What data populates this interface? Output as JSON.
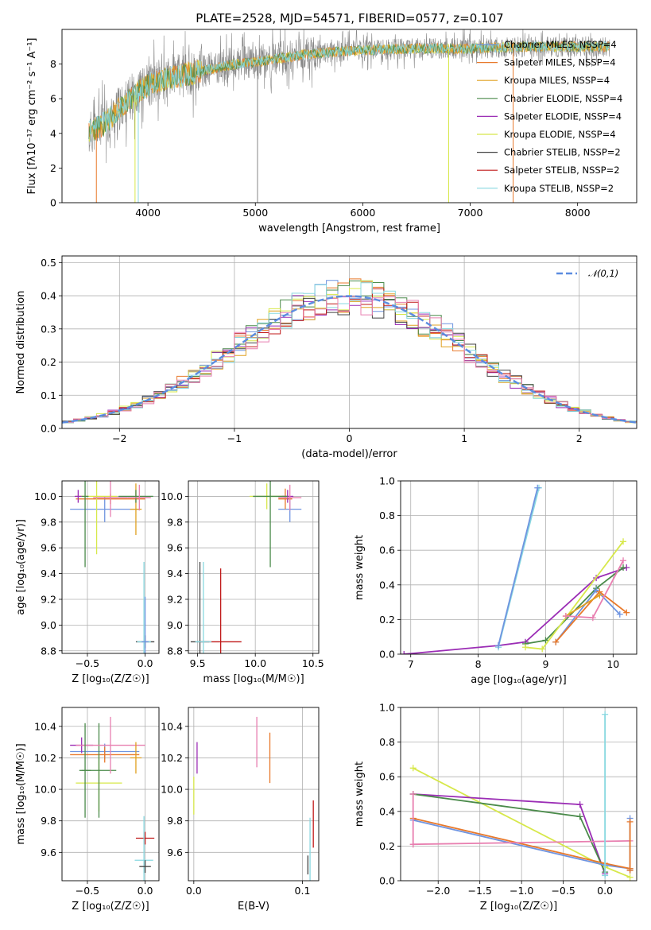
{
  "title": "PLATE=2528, MJD=54571, FIBERID=0577, z=0.107",
  "colors": {
    "Chabrier MILES": "#6f94e0",
    "Salpeter MILES": "#e8792b",
    "Kroupa MILES": "#e0a020",
    "Chabrier ELODIE": "#4a8a4a",
    "Salpeter ELODIE": "#9b2db5",
    "Kroupa ELODIE": "#d7e84a",
    "Chabrier STELIB": "#444444",
    "Salpeter STELIB": "#c01818",
    "Kroupa STELIB": "#88d8e0",
    "extra_pink": "#e87fb0",
    "data_gray": "#888888",
    "normal": "#5b8ce0"
  },
  "chart_data": [
    {
      "type": "line",
      "id": "spectrum",
      "title": "PLATE=2528, MJD=54571, FIBERID=0577, z=0.107",
      "xlabel": "wavelength [Angstrom, rest frame]",
      "ylabel": "Flux [fλ10⁻¹⁷ erg cm⁻² s⁻¹ A⁻¹]",
      "xlim": [
        3200,
        8550
      ],
      "ylim": [
        0,
        10
      ],
      "xticks": [
        "4000",
        "5000",
        "6000",
        "7000",
        "8000"
      ],
      "yticks": [
        "0",
        "2",
        "4",
        "6",
        "8"
      ],
      "grid": false,
      "legend_placement": "right",
      "legend": [
        "Chabrier MILES, NSSP=4",
        "Salpeter MILES, NSSP=4",
        "Kroupa MILES, NSSP=4",
        "Chabrier ELODIE, NSSP=4",
        "Salpeter ELODIE, NSSP=4",
        "Kroupa ELODIE, NSSP=4",
        "Chabrier STELIB, NSSP=2",
        "Salpeter STELIB, NSSP=2",
        "Kroupa STELIB, NSSP=2"
      ],
      "continuum": [
        [
          3450,
          4.0
        ],
        [
          3600,
          4.6
        ],
        [
          3800,
          5.8
        ],
        [
          4000,
          6.8
        ],
        [
          4200,
          7.2
        ],
        [
          4500,
          7.6
        ],
        [
          4800,
          8.0
        ],
        [
          5000,
          8.1
        ],
        [
          5500,
          8.6
        ],
        [
          6000,
          8.8
        ],
        [
          6500,
          8.9
        ],
        [
          7000,
          8.9
        ],
        [
          7500,
          9.0
        ],
        [
          8000,
          9.0
        ],
        [
          8300,
          9.0
        ]
      ],
      "spikes": [
        [
          3520,
          0
        ],
        [
          3880,
          0
        ],
        [
          3910,
          0
        ],
        [
          5020,
          0
        ],
        [
          6800,
          0
        ],
        [
          7400,
          0
        ]
      ]
    },
    {
      "type": "line",
      "id": "residuals",
      "xlabel": "(data-model)/error",
      "ylabel": "Normed distribution",
      "xlim": [
        -2.5,
        2.5
      ],
      "ylim": [
        0,
        0.52
      ],
      "xticks": [
        "-2",
        "-1",
        "0",
        "1",
        "2"
      ],
      "yticks": [
        "0.0",
        "0.1",
        "0.2",
        "0.3",
        "0.4",
        "0.5"
      ],
      "grid": true,
      "legend_placement": "top-right",
      "legend": [
        "𝒩(0,1)"
      ]
    },
    {
      "type": "scatter",
      "id": "age-vs-Z",
      "xlabel": "Z [log₁₀(Z/Z☉)]",
      "ylabel": "age  [log₁₀(age/yr)]",
      "xlim": [
        -0.72,
        0.12
      ],
      "ylim": [
        8.78,
        10.12
      ],
      "xticks": [
        "-0.5",
        "0.0"
      ],
      "yticks": [
        "8.8",
        "9.0",
        "9.2",
        "9.4",
        "9.6",
        "9.8",
        "10.0"
      ],
      "grid": true,
      "points": [
        {
          "c": "Chabrier MILES",
          "x": -0.35,
          "y": 9.9,
          "ex": 0.3,
          "ey": 0.1
        },
        {
          "c": "Salpeter MILES",
          "x": -0.3,
          "y": 9.98,
          "ex": 0.3,
          "ey": 0.04
        },
        {
          "c": "Kroupa ELODIE",
          "x": -0.42,
          "y": 10.0,
          "ex": 0.18,
          "ey": 0.45
        },
        {
          "c": "Salpeter ELODIE",
          "x": -0.58,
          "y": 10.0,
          "ex": 0.03,
          "ey": 0.05
        },
        {
          "c": "Chabrier ELODIE",
          "x": -0.52,
          "y": 10.0,
          "ex": 0.03,
          "ey": 0.55
        },
        {
          "c": "extra_pink",
          "x": -0.3,
          "y": 9.99,
          "ex": 0.15,
          "ey": 0.15
        },
        {
          "c": "Kroupa MILES",
          "x": -0.08,
          "y": 9.9,
          "ex": 0.05,
          "ey": 0.2
        },
        {
          "c": "Chabrier ELODIE",
          "x": -0.08,
          "y": 10.0,
          "ex": 0.15,
          "ey": 0.05
        },
        {
          "c": "extra_pink",
          "x": -0.05,
          "y": 9.99,
          "ex": 0.1,
          "ey": 0.1
        },
        {
          "c": "Chabrier STELIB",
          "x": 0.0,
          "y": 8.87,
          "ex": 0.08,
          "ey": 0.05
        },
        {
          "c": "Kroupa STELIB",
          "x": -0.01,
          "y": 8.87,
          "ex": 0.06,
          "ey": 0.62
        },
        {
          "c": "Chabrier MILES",
          "x": 0.0,
          "y": 8.87,
          "ex": 0.03,
          "ey": 0.35
        }
      ]
    },
    {
      "type": "scatter",
      "id": "age-vs-mass",
      "xlabel": "mass [log₁₀(M/M☉)]",
      "ylabel": "",
      "xlim": [
        9.42,
        10.55
      ],
      "ylim": [
        8.78,
        10.12
      ],
      "xticks": [
        "9.5",
        "10.0",
        "10.5"
      ],
      "yticks": [
        "8.8",
        "9.0",
        "9.2",
        "9.4",
        "9.6",
        "9.8",
        "10.0"
      ],
      "grid": true,
      "points": [
        {
          "c": "Chabrier MILES",
          "x": 10.3,
          "y": 9.9,
          "ex": 0.1,
          "ey": 0.1
        },
        {
          "c": "Salpeter MILES",
          "x": 10.26,
          "y": 9.98,
          "ex": 0.06,
          "ey": 0.08
        },
        {
          "c": "Kroupa ELODIE",
          "x": 10.1,
          "y": 10.0,
          "ex": 0.15,
          "ey": 0.1
        },
        {
          "c": "Salpeter ELODIE",
          "x": 10.28,
          "y": 10.0,
          "ex": 0.05,
          "ey": 0.05
        },
        {
          "c": "Chabrier ELODIE",
          "x": 10.13,
          "y": 10.0,
          "ex": 0.15,
          "ey": 0.55
        },
        {
          "c": "extra_pink",
          "x": 10.3,
          "y": 9.99,
          "ex": 0.1,
          "ey": 0.1
        },
        {
          "c": "Chabrier STELIB",
          "x": 9.52,
          "y": 8.87,
          "ex": 0.08,
          "ey": 0.62
        },
        {
          "c": "Salpeter STELIB",
          "x": 9.7,
          "y": 8.87,
          "ex": 0.18,
          "ey": 0.57
        },
        {
          "c": "Kroupa STELIB",
          "x": 9.55,
          "y": 8.87,
          "ex": 0.07,
          "ey": 0.62
        }
      ]
    },
    {
      "type": "line",
      "id": "massweight-vs-age",
      "xlabel": "age  [log₁₀(age/yr)]",
      "ylabel": "mass weight",
      "xlim": [
        6.85,
        10.35
      ],
      "ylim": [
        0,
        1
      ],
      "xticks": [
        "7",
        "8",
        "9",
        "10"
      ],
      "yticks": [
        "0.0",
        "0.2",
        "0.4",
        "0.6",
        "0.8",
        "1.0"
      ],
      "grid": true,
      "series": [
        {
          "c": "Salpeter ELODIE",
          "x": [
            6.9,
            8.3,
            8.7,
            9.75,
            10.2
          ],
          "y": [
            0.0,
            0.05,
            0.07,
            0.44,
            0.5
          ]
        },
        {
          "c": "Chabrier ELODIE",
          "x": [
            8.7,
            9.0,
            9.75,
            10.15
          ],
          "y": [
            0.06,
            0.08,
            0.38,
            0.5
          ]
        },
        {
          "c": "Kroupa ELODIE",
          "x": [
            8.7,
            8.95,
            10.15
          ],
          "y": [
            0.04,
            0.03,
            0.65
          ]
        },
        {
          "c": "Chabrier MILES",
          "x": [
            9.15,
            9.75,
            10.1
          ],
          "y": [
            0.07,
            0.37,
            0.23
          ]
        },
        {
          "c": "Salpeter MILES",
          "x": [
            9.15,
            9.8,
            10.2
          ],
          "y": [
            0.07,
            0.36,
            0.24
          ]
        },
        {
          "c": "Kroupa MILES",
          "x": [
            9.3,
            9.8
          ],
          "y": [
            0.22,
            0.34
          ]
        },
        {
          "c": "extra_pink",
          "x": [
            9.3,
            9.7,
            10.15
          ],
          "y": [
            0.22,
            0.21,
            0.54
          ]
        },
        {
          "c": "Kroupa STELIB",
          "x": [
            8.3,
            8.9
          ],
          "y": [
            0.04,
            0.96
          ]
        },
        {
          "c": "Chabrier MILES",
          "x": [
            8.3,
            8.88
          ],
          "y": [
            0.05,
            0.96
          ]
        }
      ]
    },
    {
      "type": "scatter",
      "id": "mass-vs-Z",
      "xlabel": "Z [log₁₀(Z/Z☉)]",
      "ylabel": "mass [log₁₀(M/M☉)]",
      "xlim": [
        -0.72,
        0.12
      ],
      "ylim": [
        9.42,
        10.52
      ],
      "xticks": [
        "-0.5",
        "0.0"
      ],
      "yticks": [
        "9.6",
        "9.8",
        "10.0",
        "10.2",
        "10.4"
      ],
      "grid": true,
      "points": [
        {
          "c": "Chabrier MILES",
          "x": -0.35,
          "y": 10.24,
          "ex": 0.3,
          "ey": 0.05
        },
        {
          "c": "Salpeter MILES",
          "x": -0.35,
          "y": 10.22,
          "ex": 0.3,
          "ey": 0.05
        },
        {
          "c": "Kroupa ELODIE",
          "x": -0.4,
          "y": 10.04,
          "ex": 0.2,
          "ey": 0.18
        },
        {
          "c": "Salpeter ELODIE",
          "x": -0.55,
          "y": 10.28,
          "ex": 0.1,
          "ey": 0.05
        },
        {
          "c": "Chabrier ELODIE",
          "x": -0.4,
          "y": 10.12,
          "ex": 0.15,
          "ey": 0.3
        },
        {
          "c": "extra_pink",
          "x": -0.3,
          "y": 10.28,
          "ex": 0.3,
          "ey": 0.18
        },
        {
          "c": "Chabrier ELODIE",
          "x": -0.52,
          "y": 10.12,
          "ex": 0.05,
          "ey": 0.3
        },
        {
          "c": "Kroupa MILES",
          "x": -0.08,
          "y": 10.2,
          "ex": 0.05,
          "ey": 0.1
        },
        {
          "c": "Salpeter STELIB",
          "x": 0.0,
          "y": 9.69,
          "ex": 0.08,
          "ey": 0.04
        },
        {
          "c": "Kroupa STELIB",
          "x": -0.01,
          "y": 9.55,
          "ex": 0.08,
          "ey": 0.28
        },
        {
          "c": "Chabrier STELIB",
          "x": 0.0,
          "y": 9.51,
          "ex": 0.05,
          "ey": 0.04
        }
      ]
    },
    {
      "type": "scatter",
      "id": "mass-vs-EBV",
      "xlabel": "E(B-V)",
      "ylabel": "",
      "xlim": [
        -0.005,
        0.115
      ],
      "ylim": [
        9.42,
        10.52
      ],
      "xticks": [
        "0.0",
        "0.1"
      ],
      "yticks": [
        "9.6",
        "9.8",
        "10.0",
        "10.2",
        "10.4"
      ],
      "grid": true,
      "points": [
        {
          "c": "Salpeter ELODIE",
          "x": 0.003,
          "y": 10.2,
          "ex": 0.0,
          "ey": 0.1
        },
        {
          "c": "Kroupa ELODIE",
          "x": 0.0,
          "y": 9.96,
          "ex": 0.0,
          "ey": 0.12
        },
        {
          "c": "extra_pink",
          "x": 0.058,
          "y": 10.3,
          "ex": 0.0,
          "ey": 0.16
        },
        {
          "c": "Salpeter MILES",
          "x": 0.07,
          "y": 10.2,
          "ex": 0.0,
          "ey": 0.16
        },
        {
          "c": "Salpeter STELIB",
          "x": 0.11,
          "y": 9.78,
          "ex": 0.0,
          "ey": 0.15
        },
        {
          "c": "Kroupa STELIB",
          "x": 0.107,
          "y": 9.62,
          "ex": 0.0,
          "ey": 0.2
        },
        {
          "c": "Chabrier STELIB",
          "x": 0.105,
          "y": 9.52,
          "ex": 0.0,
          "ey": 0.06
        }
      ]
    },
    {
      "type": "line",
      "id": "massweight-vs-Z",
      "xlabel": "Z [log₁₀(Z/Z☉)]",
      "ylabel": "mass weight",
      "xlim": [
        -2.45,
        0.38
      ],
      "ylim": [
        0,
        1
      ],
      "xticks": [
        "-2.0",
        "-1.5",
        "-1.0",
        "-0.5",
        "0.0"
      ],
      "yticks": [
        "0.0",
        "0.2",
        "0.4",
        "0.6",
        "0.8",
        "1.0"
      ],
      "grid": true,
      "series": [
        {
          "c": "Kroupa ELODIE",
          "x": [
            -2.3,
            0.0,
            0.3
          ],
          "y": [
            0.65,
            0.08,
            0.02
          ]
        },
        {
          "c": "Salpeter ELODIE",
          "x": [
            -2.3,
            -0.3,
            0.0
          ],
          "y": [
            0.5,
            0.44,
            0.04
          ]
        },
        {
          "c": "Chabrier ELODIE",
          "x": [
            -2.3,
            -0.3,
            0.0
          ],
          "y": [
            0.5,
            0.37,
            0.05
          ]
        },
        {
          "c": "Chabrier MILES",
          "x": [
            -2.3,
            0.0,
            0.3
          ],
          "y": [
            0.35,
            0.09,
            0.07
          ]
        },
        {
          "c": "Salpeter MILES",
          "x": [
            -2.3,
            0.0,
            0.3
          ],
          "y": [
            0.36,
            0.1,
            0.07
          ]
        },
        {
          "c": "extra_pink",
          "x": [
            -2.3,
            0.3
          ],
          "y": [
            0.21,
            0.23
          ]
        },
        {
          "c": "Kroupa STELIB",
          "x": [
            0.0,
            0.0
          ],
          "y": [
            0.03,
            0.96
          ]
        },
        {
          "c": "Chabrier MILES",
          "x": [
            0.3,
            0.3
          ],
          "y": [
            0.06,
            0.36
          ]
        },
        {
          "c": "Salpeter MILES",
          "x": [
            0.3,
            0.3
          ],
          "y": [
            0.06,
            0.34
          ]
        },
        {
          "c": "extra_pink",
          "x": [
            -2.3,
            -2.3
          ],
          "y": [
            0.21,
            0.5
          ]
        }
      ]
    }
  ]
}
